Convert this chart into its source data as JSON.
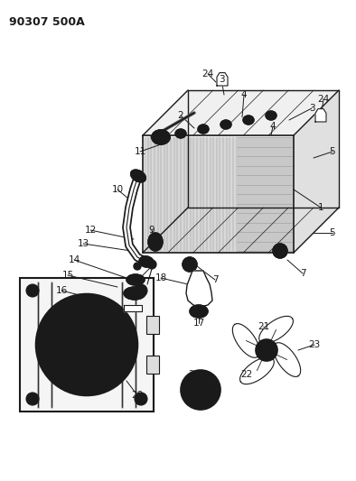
{
  "title": "90307 500A",
  "background_color": "#ffffff",
  "line_color": "#1a1a1a",
  "fig_width": 3.94,
  "fig_height": 5.33,
  "dpi": 100
}
